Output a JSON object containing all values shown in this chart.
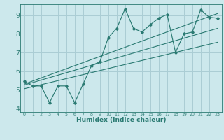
{
  "title": "",
  "xlabel": "Humidex (Indice chaleur)",
  "background_color": "#cce8ec",
  "grid_color": "#aacdd4",
  "line_color": "#2a7a72",
  "xlim": [
    -0.5,
    23.5
  ],
  "ylim": [
    3.8,
    9.6
  ],
  "yticks": [
    4,
    5,
    6,
    7,
    8,
    9
  ],
  "xticks": [
    0,
    1,
    2,
    3,
    4,
    5,
    6,
    7,
    8,
    9,
    10,
    11,
    12,
    13,
    14,
    15,
    16,
    17,
    18,
    19,
    20,
    21,
    22,
    23
  ],
  "main_x": [
    0,
    1,
    2,
    3,
    4,
    5,
    6,
    7,
    8,
    9,
    10,
    11,
    12,
    13,
    14,
    15,
    16,
    17,
    18,
    19,
    20,
    21,
    22,
    23
  ],
  "main_y": [
    5.45,
    5.2,
    5.2,
    4.3,
    5.2,
    5.2,
    4.3,
    5.3,
    6.3,
    6.5,
    7.8,
    8.3,
    9.35,
    8.3,
    8.1,
    8.5,
    8.85,
    9.05,
    7.0,
    8.0,
    8.1,
    9.3,
    8.9,
    8.85
  ],
  "line1_x": [
    0,
    23
  ],
  "line1_y": [
    5.3,
    9.1
  ],
  "line2_x": [
    0,
    23
  ],
  "line2_y": [
    5.05,
    7.55
  ],
  "line3_x": [
    0,
    23
  ],
  "line3_y": [
    5.25,
    8.3
  ]
}
